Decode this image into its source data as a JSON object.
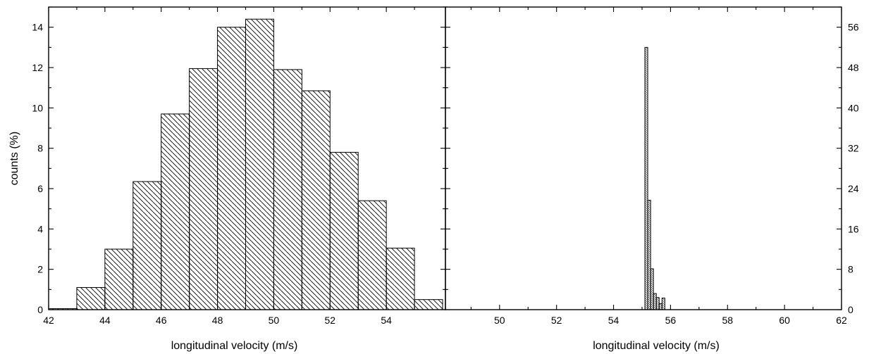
{
  "chart_data": [
    {
      "type": "bar",
      "panel": "left",
      "xlabel": "longitudinal velocity (m/s)",
      "ylabel": "counts (%)",
      "xlim": [
        42,
        56.1
      ],
      "ylim": [
        0,
        15
      ],
      "xticks": [
        42,
        44,
        46,
        48,
        50,
        52,
        54
      ],
      "yticks": [
        0,
        2,
        4,
        6,
        8,
        10,
        12,
        14
      ],
      "bin_width": 1,
      "bins_start": [
        42,
        43,
        44,
        45,
        46,
        47,
        48,
        49,
        50,
        51,
        52,
        53,
        54,
        55
      ],
      "values": [
        0.05,
        1.1,
        3.0,
        6.35,
        9.7,
        11.95,
        14.0,
        14.4,
        11.9,
        10.85,
        7.8,
        5.4,
        3.05,
        0.5
      ]
    },
    {
      "type": "bar",
      "panel": "right",
      "xlabel": "longitudinal velocity (m/s)",
      "ylabel": "",
      "xlim": [
        48.1,
        62
      ],
      "ylim": [
        0,
        60
      ],
      "xticks": [
        50,
        52,
        54,
        56,
        58,
        60,
        62
      ],
      "yticks": [
        0,
        8,
        16,
        24,
        32,
        40,
        48,
        56
      ],
      "y_axis_side": "right",
      "bin_width": 0.1,
      "bins_start": [
        55.1,
        55.2,
        55.3,
        55.4,
        55.5,
        55.6,
        55.7
      ],
      "values": [
        52,
        21.7,
        8.1,
        3.2,
        2.4,
        1.2,
        2.3
      ]
    }
  ]
}
